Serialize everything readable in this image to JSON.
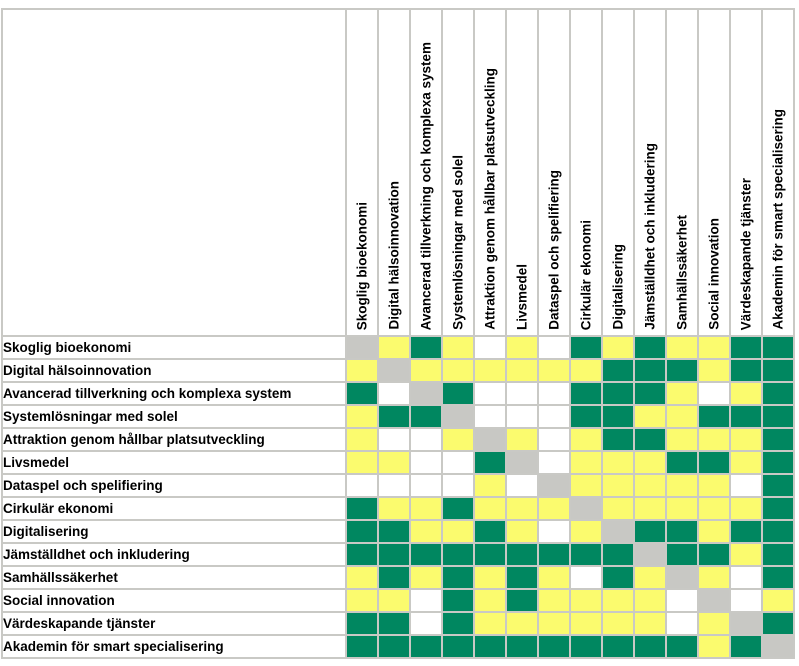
{
  "chart_data": {
    "type": "heatmap",
    "title": "",
    "x_categories": [
      "Skoglig bioekonomi",
      "Digital hälsoinnovation",
      "Avancerad tillverkning och komplexa system",
      "Systemlösningar med solel",
      "Attraktion genom hållbar platsutveckling",
      "Livsmedel",
      "Dataspel och spelifiering",
      "Cirkulär ekonomi",
      "Digitalisering",
      "Jämställdhet och inkludering",
      "Samhällssäkerhet",
      "Social innovation",
      "Värdeskapande tjänster",
      "Akademin för smart specialisering"
    ],
    "y_categories": [
      "Skoglig bioekonomi",
      "Digital hälsoinnovation",
      "Avancerad tillverkning och komplexa system",
      "Systemlösningar med solel",
      "Attraktion genom hållbar platsutveckling",
      "Livsmedel",
      "Dataspel och spelifiering",
      "Cirkulär ekonomi",
      "Digitalisering",
      "Jämställdhet och inkludering",
      "Samhällssäkerhet",
      "Social innovation",
      "Värdeskapande tjänster",
      "Akademin för smart specialisering"
    ],
    "cells": [
      [
        "D",
        "Y",
        "G",
        "Y",
        "W",
        "Y",
        "W",
        "G",
        "Y",
        "G",
        "Y",
        "Y",
        "G",
        "G"
      ],
      [
        "Y",
        "D",
        "Y",
        "Y",
        "Y",
        "Y",
        "Y",
        "Y",
        "G",
        "G",
        "G",
        "Y",
        "G",
        "G"
      ],
      [
        "G",
        "W",
        "D",
        "G",
        "W",
        "W",
        "W",
        "G",
        "G",
        "G",
        "Y",
        "W",
        "Y",
        "G"
      ],
      [
        "Y",
        "G",
        "G",
        "D",
        "W",
        "W",
        "W",
        "G",
        "G",
        "Y",
        "Y",
        "G",
        "G",
        "G"
      ],
      [
        "Y",
        "W",
        "W",
        "Y",
        "D",
        "Y",
        "W",
        "Y",
        "G",
        "G",
        "Y",
        "Y",
        "Y",
        "G"
      ],
      [
        "Y",
        "Y",
        "W",
        "W",
        "G",
        "D",
        "W",
        "Y",
        "Y",
        "Y",
        "G",
        "G",
        "Y",
        "G"
      ],
      [
        "W",
        "W",
        "W",
        "W",
        "Y",
        "W",
        "D",
        "Y",
        "Y",
        "Y",
        "Y",
        "Y",
        "W",
        "G"
      ],
      [
        "G",
        "Y",
        "Y",
        "G",
        "Y",
        "Y",
        "Y",
        "D",
        "Y",
        "Y",
        "Y",
        "Y",
        "Y",
        "G"
      ],
      [
        "G",
        "G",
        "Y",
        "Y",
        "G",
        "Y",
        "W",
        "Y",
        "D",
        "G",
        "G",
        "Y",
        "G",
        "G"
      ],
      [
        "G",
        "G",
        "G",
        "G",
        "G",
        "G",
        "G",
        "G",
        "G",
        "D",
        "G",
        "G",
        "Y",
        "G"
      ],
      [
        "Y",
        "G",
        "Y",
        "G",
        "Y",
        "G",
        "Y",
        "W",
        "G",
        "Y",
        "D",
        "Y",
        "W",
        "G"
      ],
      [
        "Y",
        "Y",
        "W",
        "G",
        "Y",
        "G",
        "Y",
        "Y",
        "Y",
        "Y",
        "W",
        "D",
        "W",
        "Y"
      ],
      [
        "G",
        "G",
        "W",
        "G",
        "Y",
        "Y",
        "Y",
        "Y",
        "Y",
        "Y",
        "W",
        "Y",
        "D",
        "G"
      ],
      [
        "G",
        "G",
        "G",
        "G",
        "G",
        "G",
        "G",
        "G",
        "G",
        "G",
        "G",
        "Y",
        "G",
        "D"
      ]
    ],
    "palette": {
      "G": "#008760",
      "Y": "#FBFB6E",
      "W": "#FFFFFF",
      "D": "#C8C8C4"
    },
    "legend_position": "none",
    "grid": true,
    "grid_color": "#c9c9c5"
  }
}
